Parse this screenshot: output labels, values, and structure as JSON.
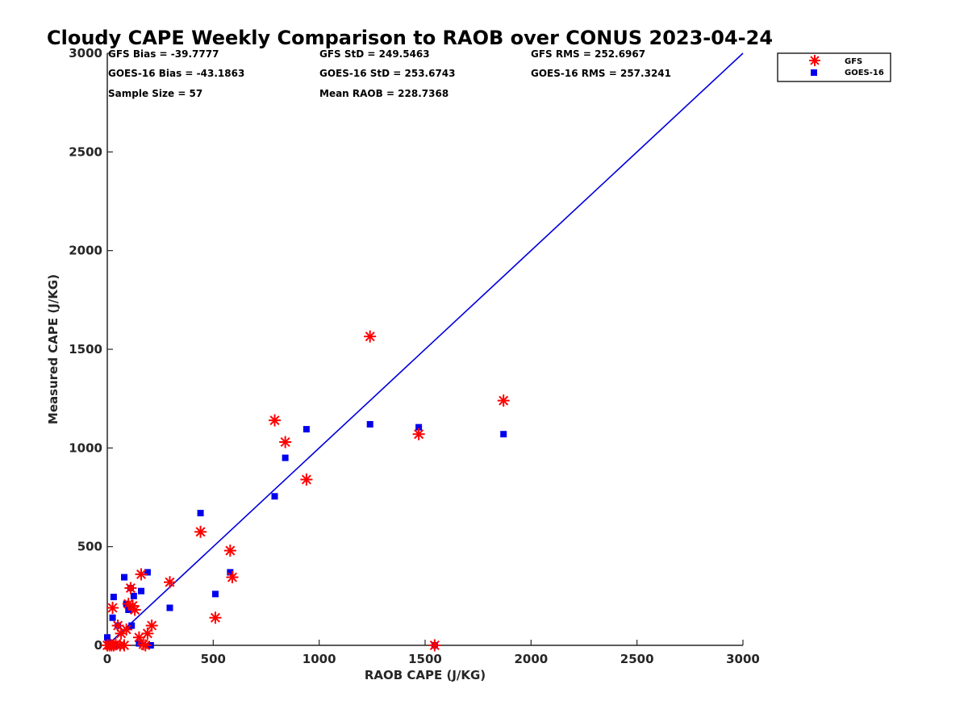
{
  "chart_data": {
    "type": "scatter",
    "title": "Cloudy CAPE Weekly Comparison to RAOB over CONUS 2023-04-24",
    "xlabel": "RAOB CAPE (J/KG)",
    "ylabel": "Measured CAPE (J/KG)",
    "xlim": [
      0,
      3000
    ],
    "ylim": [
      0,
      3000
    ],
    "xticks": [
      0,
      500,
      1000,
      1500,
      2000,
      2500,
      3000
    ],
    "yticks": [
      0,
      500,
      1000,
      1500,
      2000,
      2500,
      3000
    ],
    "grid": false,
    "legend_position": "top-right",
    "stats": [
      "GFS Bias = -39.7777",
      "GFS StD = 249.5463",
      "GFS RMS = 252.6967",
      "GOES-16 Bias = -43.1863",
      "GOES-16 StD = 253.6743",
      "GOES-16 RMS = 257.3241",
      "Sample Size = 57",
      "Mean RAOB = 228.7368"
    ],
    "reference_line": {
      "x": [
        0,
        3000
      ],
      "y": [
        0,
        3000
      ],
      "color": "#0000dd"
    },
    "series": [
      {
        "name": "GFS",
        "marker": "asterisk",
        "color": "#ff0000",
        "points": [
          [
            0,
            0
          ],
          [
            10,
            0
          ],
          [
            20,
            0
          ],
          [
            30,
            0
          ],
          [
            40,
            5
          ],
          [
            60,
            0
          ],
          [
            80,
            0
          ],
          [
            25,
            190
          ],
          [
            50,
            100
          ],
          [
            65,
            60
          ],
          [
            90,
            80
          ],
          [
            100,
            210
          ],
          [
            110,
            290
          ],
          [
            120,
            200
          ],
          [
            130,
            180
          ],
          [
            150,
            40
          ],
          [
            160,
            360
          ],
          [
            170,
            5
          ],
          [
            180,
            0
          ],
          [
            190,
            60
          ],
          [
            210,
            100
          ],
          [
            295,
            320
          ],
          [
            440,
            575
          ],
          [
            510,
            140
          ],
          [
            580,
            480
          ],
          [
            590,
            345
          ],
          [
            790,
            1140
          ],
          [
            840,
            1030
          ],
          [
            940,
            840
          ],
          [
            1240,
            1565
          ],
          [
            1470,
            1070
          ],
          [
            1545,
            0
          ],
          [
            1870,
            1240
          ]
        ]
      },
      {
        "name": "GOES-16",
        "marker": "square",
        "color": "#0000ee",
        "points": [
          [
            0,
            40
          ],
          [
            5,
            15
          ],
          [
            10,
            0
          ],
          [
            15,
            5
          ],
          [
            25,
            140
          ],
          [
            30,
            245
          ],
          [
            40,
            0
          ],
          [
            50,
            100
          ],
          [
            80,
            345
          ],
          [
            90,
            210
          ],
          [
            100,
            180
          ],
          [
            110,
            290
          ],
          [
            115,
            100
          ],
          [
            125,
            250
          ],
          [
            150,
            10
          ],
          [
            160,
            275
          ],
          [
            190,
            370
          ],
          [
            205,
            0
          ],
          [
            295,
            190
          ],
          [
            440,
            670
          ],
          [
            510,
            260
          ],
          [
            580,
            370
          ],
          [
            790,
            755
          ],
          [
            840,
            950
          ],
          [
            940,
            1095
          ],
          [
            1240,
            1120
          ],
          [
            1470,
            1105
          ],
          [
            1545,
            0
          ],
          [
            1870,
            1070
          ]
        ]
      }
    ]
  }
}
